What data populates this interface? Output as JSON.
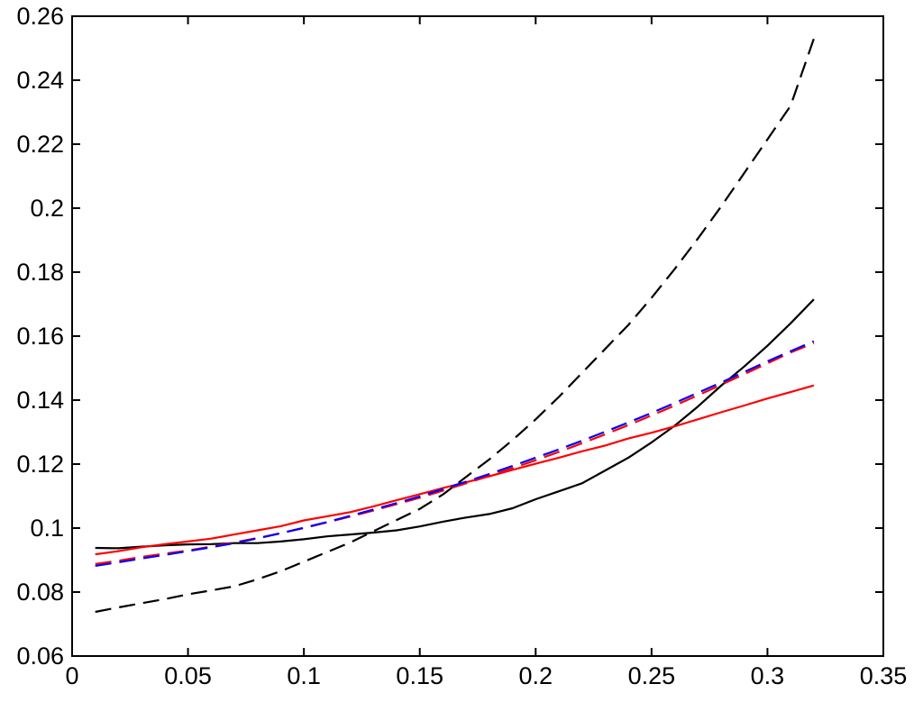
{
  "chart_data": {
    "type": "line",
    "title": "",
    "xlabel": "",
    "ylabel": "",
    "xlim": [
      0,
      0.35
    ],
    "ylim": [
      0.06,
      0.26
    ],
    "grid": false,
    "legend": "none",
    "x_ticks": [
      "0",
      "0.05",
      "0.1",
      "0.15",
      "0.2",
      "0.25",
      "0.3",
      "0.35"
    ],
    "y_ticks": [
      "0.06",
      "0.08",
      "0.1",
      "0.12",
      "0.14",
      "0.16",
      "0.18",
      "0.2",
      "0.22",
      "0.24",
      "0.26"
    ],
    "x": [
      0.01,
      0.02,
      0.03,
      0.04,
      0.05,
      0.06,
      0.07,
      0.08,
      0.09,
      0.1,
      0.11,
      0.12,
      0.13,
      0.14,
      0.15,
      0.16,
      0.17,
      0.18,
      0.19,
      0.2,
      0.21,
      0.22,
      0.23,
      0.24,
      0.25,
      0.26,
      0.27,
      0.28,
      0.29,
      0.3,
      0.31,
      0.32
    ],
    "series": [
      {
        "color": "#000000",
        "dash": "solid",
        "values": [
          0.0938,
          0.0937,
          0.0942,
          0.0946,
          0.0949,
          0.095,
          0.0953,
          0.0953,
          0.0958,
          0.0965,
          0.0974,
          0.098,
          0.0986,
          0.0993,
          0.1005,
          0.102,
          0.1033,
          0.1044,
          0.1062,
          0.109,
          0.1115,
          0.114,
          0.118,
          0.122,
          0.1268,
          0.132,
          0.138,
          0.1445,
          0.1505,
          0.157,
          0.164,
          0.1715
        ]
      },
      {
        "color": "#000000",
        "dash": "dashed",
        "values": [
          0.0738,
          0.0752,
          0.0765,
          0.0778,
          0.0793,
          0.0805,
          0.0818,
          0.084,
          0.0865,
          0.0895,
          0.0925,
          0.0955,
          0.099,
          0.1025,
          0.106,
          0.1105,
          0.116,
          0.1215,
          0.1275,
          0.134,
          0.141,
          0.1485,
          0.156,
          0.1635,
          0.172,
          0.181,
          0.1905,
          0.2005,
          0.211,
          0.2215,
          0.232,
          0.253
        ]
      },
      {
        "color": "#ff0000",
        "dash": "solid",
        "values": [
          0.0918,
          0.0928,
          0.094,
          0.095,
          0.0958,
          0.0967,
          0.098,
          0.0993,
          0.1006,
          0.1024,
          0.1037,
          0.105,
          0.1068,
          0.1087,
          0.1106,
          0.1125,
          0.1143,
          0.1162,
          0.1182,
          0.1201,
          0.122,
          0.124,
          0.1258,
          0.128,
          0.1298,
          0.1318,
          0.134,
          0.1362,
          0.1383,
          0.1405,
          0.1425,
          0.1446
        ]
      },
      {
        "color": "#ff0000",
        "dash": "dashed",
        "values": [
          0.0888,
          0.0898,
          0.091,
          0.092,
          0.093,
          0.0942,
          0.0955,
          0.0969,
          0.0984,
          0.1,
          0.1018,
          0.1036,
          0.1055,
          0.1075,
          0.1095,
          0.1117,
          0.114,
          0.1163,
          0.1187,
          0.1212,
          0.1238,
          0.1265,
          0.1293,
          0.1322,
          0.1352,
          0.1383,
          0.1415,
          0.1448,
          0.1481,
          0.1515,
          0.1549,
          0.1578
        ]
      },
      {
        "color": "#0000ff",
        "dash": "dashed",
        "values": [
          0.0882,
          0.0893,
          0.0905,
          0.0916,
          0.0928,
          0.094,
          0.0953,
          0.0968,
          0.0984,
          0.1001,
          0.1019,
          0.1038,
          0.1058,
          0.1078,
          0.1099,
          0.1122,
          0.1145,
          0.1169,
          0.1194,
          0.122,
          0.1246,
          0.1273,
          0.1301,
          0.133,
          0.136,
          0.1391,
          0.1423,
          0.1455,
          0.1488,
          0.1521,
          0.1553,
          0.1584
        ]
      }
    ]
  }
}
